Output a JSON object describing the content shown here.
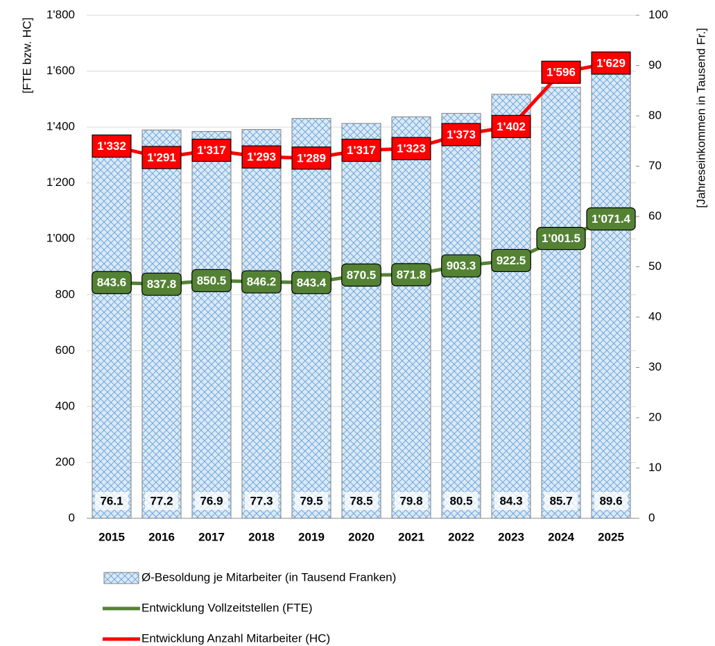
{
  "chart_data": {
    "type": "bar",
    "categories": [
      "2015",
      "2016",
      "2017",
      "2018",
      "2019",
      "2020",
      "2021",
      "2022",
      "2023",
      "2024",
      "2025"
    ],
    "ylabel": "[FTE  bzw. HC]",
    "y2label": "[Jahreseinkommen in Tausend Fr.]",
    "ylim": [
      0,
      1800
    ],
    "yticks": [
      0,
      200,
      400,
      600,
      800,
      {
        "value": 1000,
        "label": "1'000"
      },
      {
        "value": 1200,
        "label": "1'200"
      },
      {
        "value": 1400,
        "label": "1'400"
      },
      {
        "value": 1600,
        "label": "1'600"
      },
      {
        "value": 1800,
        "label": "1'800"
      }
    ],
    "y2lim": [
      0,
      100
    ],
    "y2ticks": [
      0,
      10,
      20,
      30,
      40,
      50,
      60,
      70,
      80,
      90,
      100
    ],
    "grid": true,
    "legend": "bottom",
    "series": [
      {
        "name": "Ø-Besoldung je Mitarbeiter (in Tausend Franken)",
        "type": "bar",
        "axis": "y2",
        "color": "#9dc3e6",
        "values": [
          76.1,
          77.2,
          76.9,
          77.3,
          79.5,
          78.5,
          79.8,
          80.5,
          84.3,
          85.7,
          89.6
        ]
      },
      {
        "name": "Entwicklung Vollzeitstellen (FTE)",
        "type": "line",
        "color": "#548235",
        "values": [
          843.6,
          837.8,
          850.5,
          846.2,
          843.4,
          870.5,
          871.8,
          903.3,
          922.5,
          1001.5,
          1071.4
        ],
        "value_labels": [
          "843.6",
          "837.8",
          "850.5",
          "846.2",
          "843.4",
          "870.5",
          "871.8",
          "903.3",
          "922.5",
          "1'001.5",
          "1'071.4"
        ]
      },
      {
        "name": "Entwicklung Anzahl Mitarbeiter (HC)",
        "type": "line",
        "color": "#ff0000",
        "values": [
          1332,
          1291,
          1317,
          1293,
          1289,
          1317,
          1323,
          1373,
          1402,
          1596,
          1629
        ],
        "value_labels": [
          "1'332",
          "1'291",
          "1'317",
          "1'293",
          "1'289",
          "1'317",
          "1'323",
          "1'373",
          "1'402",
          "1'596",
          "1'629"
        ]
      }
    ]
  }
}
